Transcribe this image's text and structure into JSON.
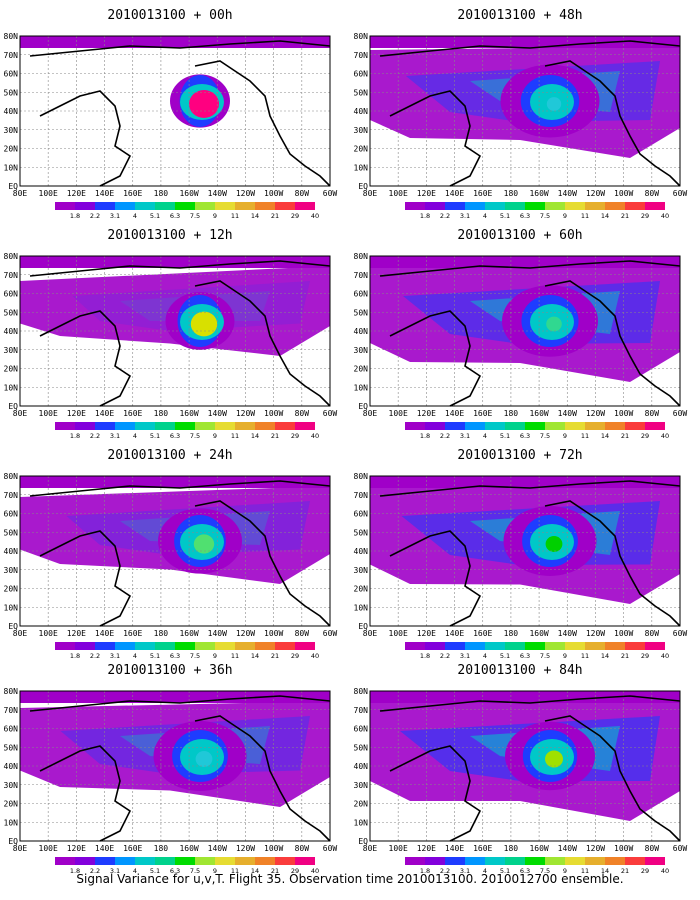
{
  "panels": [
    {
      "title": "2010013100 + 00h",
      "spread": 0,
      "blob": 1.0,
      "blobColor": "#ff0080"
    },
    {
      "title": "2010013100 + 12h",
      "spread": 0.25,
      "blob": 0.85,
      "blobColor": "#d8e000"
    },
    {
      "title": "2010013100 + 24h",
      "spread": 0.45,
      "blob": 0.6,
      "blobColor": "#50e070"
    },
    {
      "title": "2010013100 + 36h",
      "spread": 0.65,
      "blob": 0.45,
      "blobColor": "#20c8d8"
    },
    {
      "title": "2010013100 + 48h",
      "spread": 0.8,
      "blob": 0.35,
      "blobColor": "#20c8d8"
    },
    {
      "title": "2010013100 + 60h",
      "spread": 0.9,
      "blob": 0.4,
      "blobColor": "#30d890"
    },
    {
      "title": "2010013100 + 72h",
      "spread": 0.95,
      "blob": 0.45,
      "blobColor": "#00d000"
    },
    {
      "title": "2010013100 + 84h",
      "spread": 1.0,
      "blob": 0.5,
      "blobColor": "#a0e000"
    }
  ],
  "lat_labels": [
    "80N",
    "70N",
    "60N",
    "50N",
    "40N",
    "30N",
    "20N",
    "10N",
    "EQ"
  ],
  "lon_labels": [
    "80E",
    "100E",
    "120E",
    "140E",
    "160E",
    "180",
    "160W",
    "140W",
    "120W",
    "100W",
    "80W",
    "60W"
  ],
  "colorbar": {
    "labels": [
      "1.8",
      "2.2",
      "3.1",
      "4",
      "5.1",
      "6.3",
      "7.5",
      "9",
      "11",
      "14",
      "21",
      "29",
      "40"
    ],
    "colors": [
      "#a000c8",
      "#8200dc",
      "#1e3cff",
      "#0096ff",
      "#00c8c8",
      "#00d28c",
      "#00dc00",
      "#a0e632",
      "#e6dc32",
      "#e6af2d",
      "#f08228",
      "#fa3c3c",
      "#f00082"
    ]
  },
  "caption": "Signal Variance for u,v,T. Flight 35. Observation time 2010013100. 2010012700 ensemble."
}
